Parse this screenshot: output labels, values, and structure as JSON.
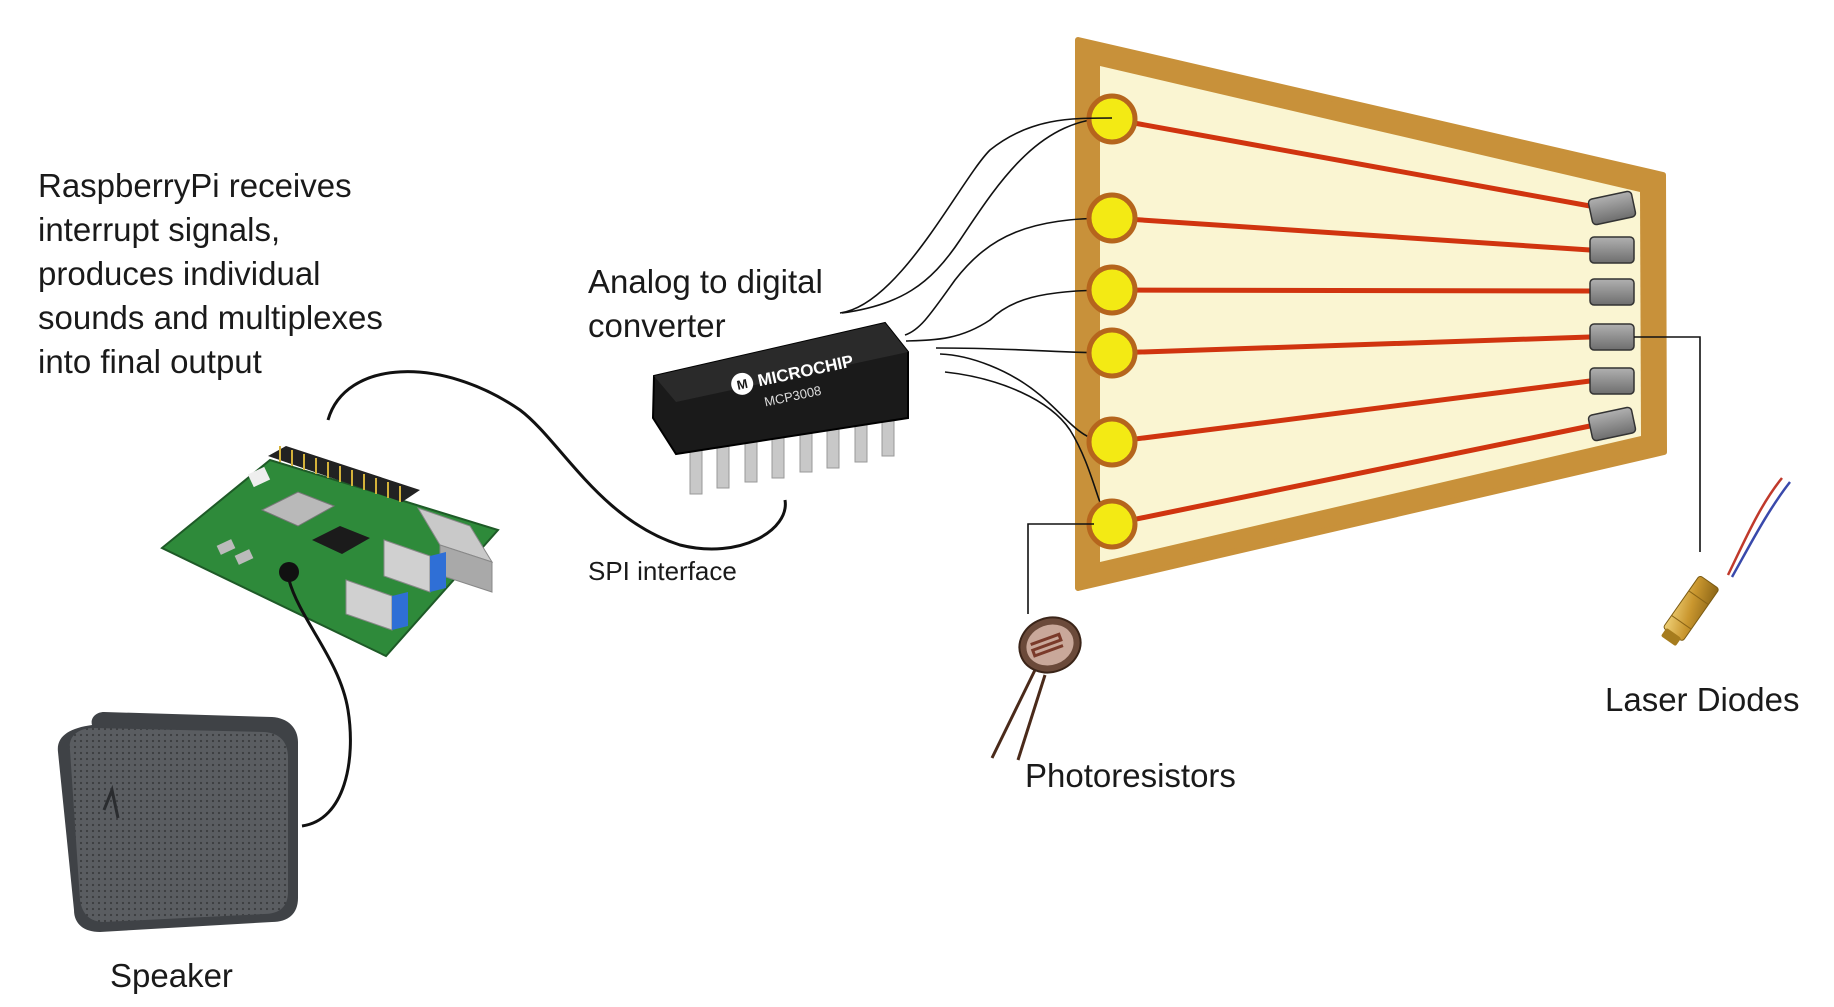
{
  "labels": {
    "rpi_lines": [
      "RaspberryPi receives",
      "interrupt signals,",
      "produces individual",
      "sounds and multiplexes",
      "into final output"
    ],
    "adc_lines": [
      "Analog to digital",
      "converter"
    ],
    "spi": "SPI interface",
    "photoresistors": "Photoresistors",
    "laser_diodes": "Laser Diodes",
    "speaker": "Speaker"
  },
  "chip": {
    "brand": "MICROCHIP",
    "model": "MCP3008"
  },
  "colors": {
    "frame": "#c8913a",
    "frame_fill": "#faf5d2",
    "beam": "#d0340f",
    "sensor": "#f3ea14",
    "sensor_ring": "#b5651d",
    "diode": "#8c8c8c",
    "wire": "#111111",
    "pcb": "#2e8a3a"
  },
  "counts": {
    "beams": 6
  }
}
